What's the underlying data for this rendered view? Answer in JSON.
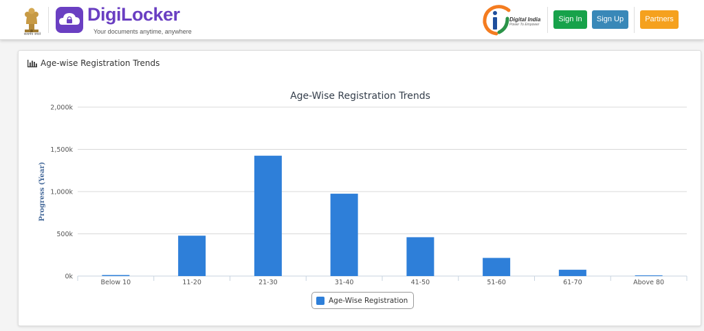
{
  "header": {
    "emblem_caption": "सत्यमेव जयते",
    "brand_name": "DigiLocker",
    "tagline": "Your documents anytime, anywhere",
    "digital_india_name": "Digital India",
    "digital_india_tagline": "Power To Empower",
    "signin_label": "Sign In",
    "signup_label": "Sign Up",
    "partners_label": "Partners"
  },
  "colors": {
    "brand": "#6a3fc2",
    "signin": "#17a24a",
    "signup": "#3988b8",
    "partners": "#f5a11e",
    "bar": "#2e7fd9"
  },
  "card": {
    "title": "Age-wise Registration Trends",
    "icon": "bar-chart-icon"
  },
  "chart_data": {
    "type": "bar",
    "title": "Age-Wise Registration Trends",
    "xlabel": "",
    "ylabel": "Progress (Year)",
    "categories": [
      "Below 10",
      "11-20",
      "21-30",
      "31-40",
      "41-50",
      "51-60",
      "61-70",
      "Above 80"
    ],
    "series": [
      {
        "name": "Age-Wise Registration",
        "values": [
          12000,
          478000,
          1425000,
          975000,
          460000,
          215000,
          75000,
          2000
        ]
      }
    ],
    "ylim": [
      0,
      2000000
    ],
    "yticks": [
      {
        "value": 0,
        "label": "0k"
      },
      {
        "value": 500000,
        "label": "500k"
      },
      {
        "value": 1000000,
        "label": "1,000k"
      },
      {
        "value": 1500000,
        "label": "1,500k"
      },
      {
        "value": 2000000,
        "label": "2,000k"
      }
    ],
    "grid": true,
    "legend": "bottom-center"
  }
}
